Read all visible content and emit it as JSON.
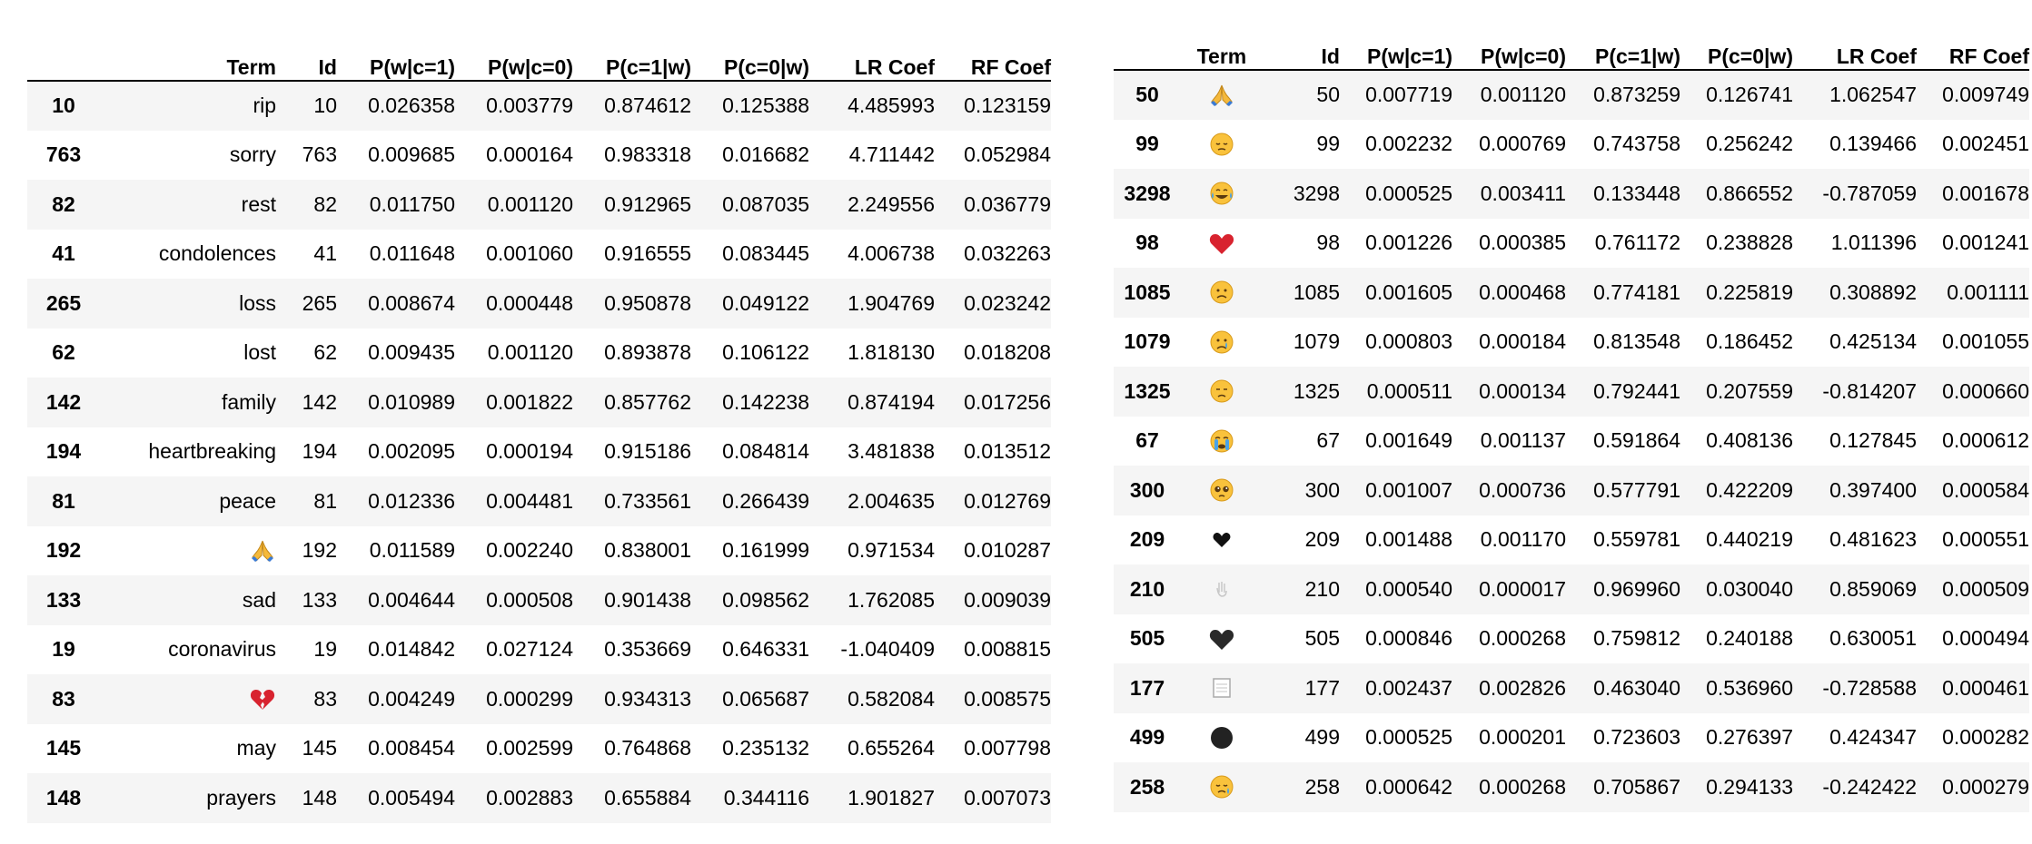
{
  "left_table": {
    "columns": [
      "",
      "Term",
      "Id",
      "P(w|c=1)",
      "P(w|c=0)",
      "P(c=1|w)",
      "P(c=0|w)",
      "LR Coef",
      "RF Coef"
    ],
    "rows": [
      {
        "index": "10",
        "term": "rip",
        "id": "10",
        "p_w_c1": "0.026358",
        "p_w_c0": "0.003779",
        "p_c1_w": "0.874612",
        "p_c0_w": "0.125388",
        "lr": "4.485993",
        "rf": "0.123159"
      },
      {
        "index": "763",
        "term": "sorry",
        "id": "763",
        "p_w_c1": "0.009685",
        "p_w_c0": "0.000164",
        "p_c1_w": "0.983318",
        "p_c0_w": "0.016682",
        "lr": "4.711442",
        "rf": "0.052984"
      },
      {
        "index": "82",
        "term": "rest",
        "id": "82",
        "p_w_c1": "0.011750",
        "p_w_c0": "0.001120",
        "p_c1_w": "0.912965",
        "p_c0_w": "0.087035",
        "lr": "2.249556",
        "rf": "0.036779"
      },
      {
        "index": "41",
        "term": "condolences",
        "id": "41",
        "p_w_c1": "0.011648",
        "p_w_c0": "0.001060",
        "p_c1_w": "0.916555",
        "p_c0_w": "0.083445",
        "lr": "4.006738",
        "rf": "0.032263"
      },
      {
        "index": "265",
        "term": "loss",
        "id": "265",
        "p_w_c1": "0.008674",
        "p_w_c0": "0.000448",
        "p_c1_w": "0.950878",
        "p_c0_w": "0.049122",
        "lr": "1.904769",
        "rf": "0.023242"
      },
      {
        "index": "62",
        "term": "lost",
        "id": "62",
        "p_w_c1": "0.009435",
        "p_w_c0": "0.001120",
        "p_c1_w": "0.893878",
        "p_c0_w": "0.106122",
        "lr": "1.818130",
        "rf": "0.018208"
      },
      {
        "index": "142",
        "term": "family",
        "id": "142",
        "p_w_c1": "0.010989",
        "p_w_c0": "0.001822",
        "p_c1_w": "0.857762",
        "p_c0_w": "0.142238",
        "lr": "0.874194",
        "rf": "0.017256"
      },
      {
        "index": "194",
        "term": "heartbreaking",
        "id": "194",
        "p_w_c1": "0.002095",
        "p_w_c0": "0.000194",
        "p_c1_w": "0.915186",
        "p_c0_w": "0.084814",
        "lr": "3.481838",
        "rf": "0.013512"
      },
      {
        "index": "81",
        "term": "peace",
        "id": "81",
        "p_w_c1": "0.012336",
        "p_w_c0": "0.004481",
        "p_c1_w": "0.733561",
        "p_c0_w": "0.266439",
        "lr": "2.004635",
        "rf": "0.012769"
      },
      {
        "index": "192",
        "term": "",
        "emoji": "folded-hands",
        "id": "192",
        "p_w_c1": "0.011589",
        "p_w_c0": "0.002240",
        "p_c1_w": "0.838001",
        "p_c0_w": "0.161999",
        "lr": "0.971534",
        "rf": "0.010287"
      },
      {
        "index": "133",
        "term": "sad",
        "id": "133",
        "p_w_c1": "0.004644",
        "p_w_c0": "0.000508",
        "p_c1_w": "0.901438",
        "p_c0_w": "0.098562",
        "lr": "1.762085",
        "rf": "0.009039"
      },
      {
        "index": "19",
        "term": "coronavirus",
        "id": "19",
        "p_w_c1": "0.014842",
        "p_w_c0": "0.027124",
        "p_c1_w": "0.353669",
        "p_c0_w": "0.646331",
        "lr": "-1.040409",
        "rf": "0.008815"
      },
      {
        "index": "83",
        "term": "",
        "emoji": "broken-heart",
        "id": "83",
        "p_w_c1": "0.004249",
        "p_w_c0": "0.000299",
        "p_c1_w": "0.934313",
        "p_c0_w": "0.065687",
        "lr": "0.582084",
        "rf": "0.008575"
      },
      {
        "index": "145",
        "term": "may",
        "id": "145",
        "p_w_c1": "0.008454",
        "p_w_c0": "0.002599",
        "p_c1_w": "0.764868",
        "p_c0_w": "0.235132",
        "lr": "0.655264",
        "rf": "0.007798"
      },
      {
        "index": "148",
        "term": "prayers",
        "id": "148",
        "p_w_c1": "0.005494",
        "p_w_c0": "0.002883",
        "p_c1_w": "0.655884",
        "p_c0_w": "0.344116",
        "lr": "1.901827",
        "rf": "0.007073"
      }
    ]
  },
  "right_table": {
    "columns": [
      "",
      "Term",
      "Id",
      "P(w|c=1)",
      "P(w|c=0)",
      "P(c=1|w)",
      "P(c=0|w)",
      "LR Coef",
      "RF Coef"
    ],
    "rows": [
      {
        "index": "50",
        "emoji": "folded-hands",
        "id": "50",
        "p_w_c1": "0.007719",
        "p_w_c0": "0.001120",
        "p_c1_w": "0.873259",
        "p_c0_w": "0.126741",
        "lr": "1.062547",
        "rf": "0.009749"
      },
      {
        "index": "99",
        "emoji": "pensive-face",
        "id": "99",
        "p_w_c1": "0.002232",
        "p_w_c0": "0.000769",
        "p_c1_w": "0.743758",
        "p_c0_w": "0.256242",
        "lr": "0.139466",
        "rf": "0.002451"
      },
      {
        "index": "3298",
        "emoji": "tears-of-joy-face",
        "id": "3298",
        "p_w_c1": "0.000525",
        "p_w_c0": "0.003411",
        "p_c1_w": "0.133448",
        "p_c0_w": "0.866552",
        "lr": "-0.787059",
        "rf": "0.001678"
      },
      {
        "index": "98",
        "emoji": "red-heart",
        "id": "98",
        "p_w_c1": "0.001226",
        "p_w_c0": "0.000385",
        "p_c1_w": "0.761172",
        "p_c0_w": "0.238828",
        "lr": "1.011396",
        "rf": "0.001241"
      },
      {
        "index": "1085",
        "emoji": "sad-face",
        "id": "1085",
        "p_w_c1": "0.001605",
        "p_w_c0": "0.000468",
        "p_c1_w": "0.774181",
        "p_c0_w": "0.225819",
        "lr": "0.308892",
        "rf": "0.001111"
      },
      {
        "index": "1079",
        "emoji": "crying-face",
        "id": "1079",
        "p_w_c1": "0.000803",
        "p_w_c0": "0.000184",
        "p_c1_w": "0.813548",
        "p_c0_w": "0.186452",
        "lr": "0.425134",
        "rf": "0.001055"
      },
      {
        "index": "1325",
        "emoji": "disappointed-face",
        "id": "1325",
        "p_w_c1": "0.000511",
        "p_w_c0": "0.000134",
        "p_c1_w": "0.792441",
        "p_c0_w": "0.207559",
        "lr": "-0.814207",
        "rf": "0.000660"
      },
      {
        "index": "67",
        "emoji": "loudly-crying-face",
        "id": "67",
        "p_w_c1": "0.001649",
        "p_w_c0": "0.001137",
        "p_c1_w": "0.591864",
        "p_c0_w": "0.408136",
        "lr": "0.127845",
        "rf": "0.000612"
      },
      {
        "index": "300",
        "emoji": "pleading-face",
        "id": "300",
        "p_w_c1": "0.001007",
        "p_w_c0": "0.000736",
        "p_c1_w": "0.577791",
        "p_c0_w": "0.422209",
        "lr": "0.397400",
        "rf": "0.000584"
      },
      {
        "index": "209",
        "emoji": "small-black-heart",
        "id": "209",
        "p_w_c1": "0.001488",
        "p_w_c0": "0.001170",
        "p_c1_w": "0.559781",
        "p_c0_w": "0.440219",
        "lr": "0.481623",
        "rf": "0.000551"
      },
      {
        "index": "210",
        "emoji": "faint-hand",
        "id": "210",
        "p_w_c1": "0.000540",
        "p_w_c0": "0.000017",
        "p_c1_w": "0.969960",
        "p_c0_w": "0.030040",
        "lr": "0.859069",
        "rf": "0.000509"
      },
      {
        "index": "505",
        "emoji": "black-heart",
        "id": "505",
        "p_w_c1": "0.000846",
        "p_w_c0": "0.000268",
        "p_c1_w": "0.759812",
        "p_c0_w": "0.240188",
        "lr": "0.630051",
        "rf": "0.000494"
      },
      {
        "index": "177",
        "emoji": "missing-glyph-box",
        "id": "177",
        "p_w_c1": "0.002437",
        "p_w_c0": "0.002826",
        "p_c1_w": "0.463040",
        "p_c0_w": "0.536960",
        "lr": "-0.728588",
        "rf": "0.000461"
      },
      {
        "index": "499",
        "emoji": "black-circle",
        "id": "499",
        "p_w_c1": "0.000525",
        "p_w_c0": "0.000201",
        "p_c1_w": "0.723603",
        "p_c0_w": "0.276397",
        "lr": "0.424347",
        "rf": "0.000282"
      },
      {
        "index": "258",
        "emoji": "sad-sweat-face",
        "id": "258",
        "p_w_c1": "0.000642",
        "p_w_c0": "0.000268",
        "p_c1_w": "0.705867",
        "p_c0_w": "0.294133",
        "lr": "-0.242422",
        "rf": "0.000279"
      }
    ]
  }
}
